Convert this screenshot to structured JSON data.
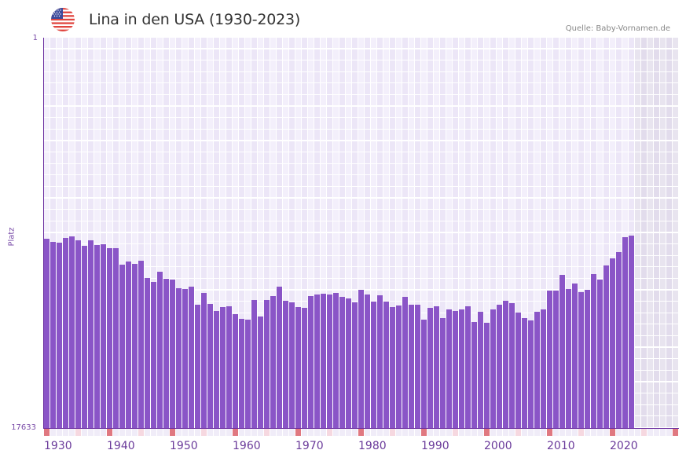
{
  "header": {
    "title": "Lina in den USA (1930-2023)",
    "source": "Quelle: Baby-Vornamen.de",
    "flag_icon": "us-flag-icon"
  },
  "colors": {
    "bar": "#8a55c7",
    "axis": "#6a2d9f",
    "grid_a": "#f3effb",
    "grid_b": "#ece6f7",
    "future_a": "#e8e4ef",
    "future_b": "#e2dcec",
    "tick_decade": "#e07880",
    "tick_half": "#f6d8e0",
    "tick_other": "#f0ecf8"
  },
  "chart_data": {
    "type": "bar",
    "title": "Lina in den USA (1930-2023)",
    "xlabel": "",
    "ylabel": "Platz",
    "ylim": [
      17633,
      1
    ],
    "y_inverted": true,
    "y_ticks": [
      "1",
      "17633"
    ],
    "x_ticks": [
      "1930",
      "1940",
      "1950",
      "1960",
      "1970",
      "1980",
      "1990",
      "2000",
      "2010",
      "2020"
    ],
    "x_range": [
      1930,
      2030
    ],
    "grid": true,
    "source": "Quelle: Baby-Vornamen.de",
    "categories": [
      1930,
      1931,
      1932,
      1933,
      1934,
      1935,
      1936,
      1937,
      1938,
      1939,
      1940,
      1941,
      1942,
      1943,
      1944,
      1945,
      1946,
      1947,
      1948,
      1949,
      1950,
      1951,
      1952,
      1953,
      1954,
      1955,
      1956,
      1957,
      1958,
      1959,
      1960,
      1961,
      1962,
      1963,
      1964,
      1965,
      1966,
      1967,
      1968,
      1969,
      1970,
      1971,
      1972,
      1973,
      1974,
      1975,
      1976,
      1977,
      1978,
      1979,
      1980,
      1981,
      1982,
      1983,
      1984,
      1985,
      1986,
      1987,
      1988,
      1989,
      1990,
      1991,
      1992,
      1993,
      1994,
      1995,
      1996,
      1997,
      1998,
      1999,
      2000,
      2001,
      2002,
      2003,
      2004,
      2005,
      2006,
      2007,
      2008,
      2009,
      2010,
      2011,
      2012,
      2013,
      2014,
      2015,
      2016,
      2017,
      2018,
      2019,
      2020,
      2021,
      2022,
      2023
    ],
    "series": [
      {
        "name": "Platz",
        "values": [
          9084,
          9225,
          9261,
          9048,
          8977,
          9155,
          9403,
          9155,
          9368,
          9332,
          9510,
          9510,
          10255,
          10113,
          10219,
          10077,
          10858,
          11035,
          10574,
          10893,
          10929,
          11319,
          11355,
          11248,
          12064,
          11532,
          12028,
          12348,
          12170,
          12135,
          12490,
          12703,
          12738,
          11851,
          12596,
          11851,
          11674,
          11248,
          11887,
          11958,
          12170,
          12206,
          11674,
          11603,
          11568,
          11603,
          11532,
          11709,
          11780,
          11958,
          11390,
          11603,
          11922,
          11638,
          11922,
          12170,
          12099,
          11709,
          12064,
          12064,
          12738,
          12206,
          12135,
          12667,
          12277,
          12348,
          12277,
          12135,
          12845,
          12383,
          12880,
          12277,
          12064,
          11887,
          11993,
          12419,
          12667,
          12774,
          12383,
          12277,
          11426,
          11426,
          10716,
          11355,
          11106,
          11496,
          11390,
          10681,
          10929,
          10290,
          9971,
          9687,
          9013,
          8942
        ]
      }
    ]
  }
}
